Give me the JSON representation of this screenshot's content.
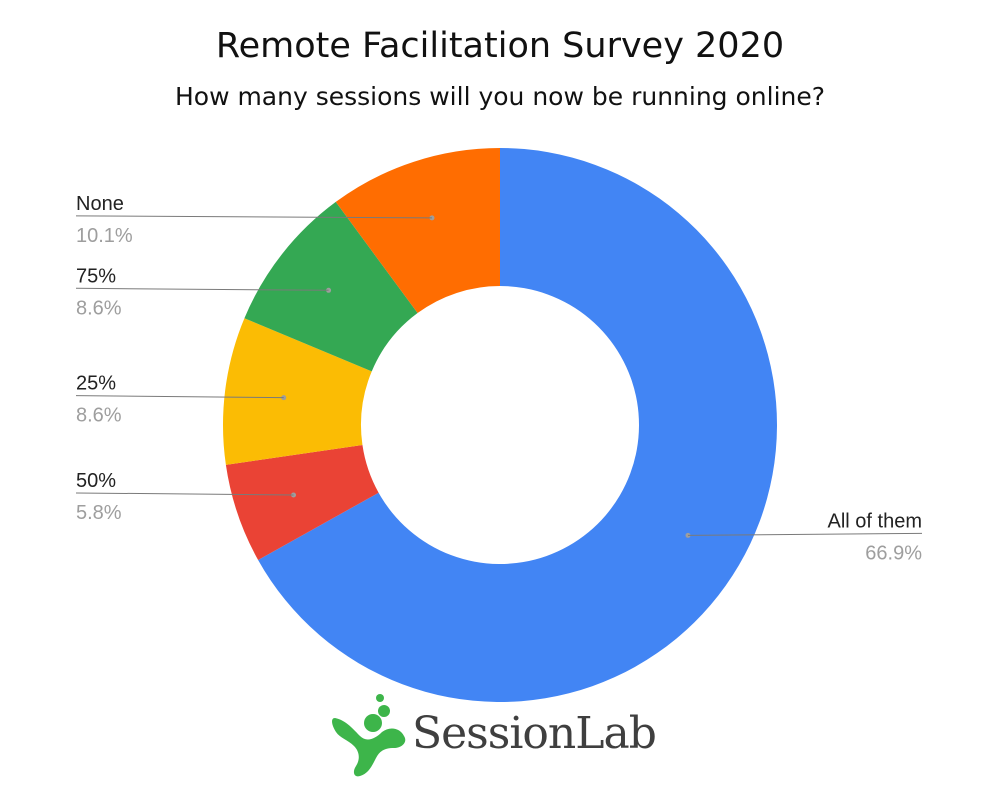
{
  "chart_data": {
    "type": "pie",
    "title": "Remote Facilitation Survey 2020",
    "subtitle": "How many sessions will you now be running online?",
    "donut": true,
    "slices": [
      {
        "label": "All of them",
        "percent_label": "66.9%",
        "value": 66.9,
        "color": "#4285F4"
      },
      {
        "label": "50%",
        "percent_label": "5.8%",
        "value": 5.8,
        "color": "#EA4335"
      },
      {
        "label": "25%",
        "percent_label": "8.6%",
        "value": 8.6,
        "color": "#FBBC04"
      },
      {
        "label": "75%",
        "percent_label": "8.6%",
        "value": 8.6,
        "color": "#34A853"
      },
      {
        "label": "None",
        "percent_label": "10.1%",
        "value": 10.1,
        "color": "#FF6D01"
      }
    ]
  },
  "logo": {
    "text": "SessionLab",
    "color": "#3DB54A"
  }
}
